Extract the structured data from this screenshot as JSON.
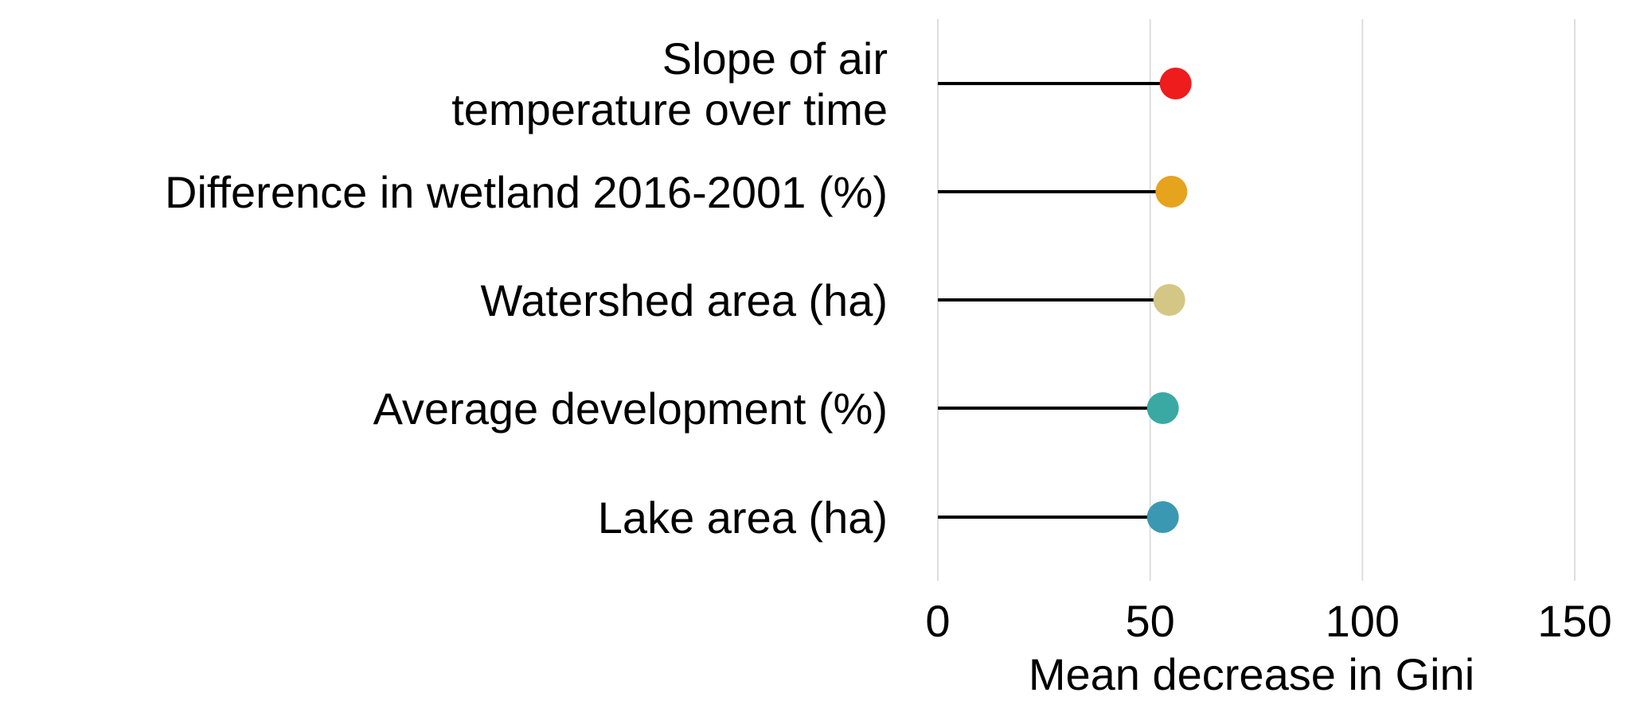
{
  "chart_data": {
    "type": "lollipop",
    "orientation": "horizontal",
    "title": "",
    "xlabel": "Mean decrease in Gini",
    "ylabel": "",
    "xlim": [
      0,
      150
    ],
    "xticks": [
      0,
      50,
      100,
      150
    ],
    "grid": "vertical-major",
    "legend": "none",
    "categories": [
      [
        "Slope of air",
        "temperature over time"
      ],
      [
        "Difference in wetland 2016-2001 (%)"
      ],
      [
        "Watershed area (ha)"
      ],
      [
        "Average development (%)"
      ],
      [
        "Lake area (ha)"
      ]
    ],
    "values": [
      56,
      55,
      54.5,
      53,
      53
    ],
    "colors": [
      "#ee1c1c",
      "#e6a31e",
      "#d4c785",
      "#3aa9a3",
      "#3a98b2"
    ]
  }
}
